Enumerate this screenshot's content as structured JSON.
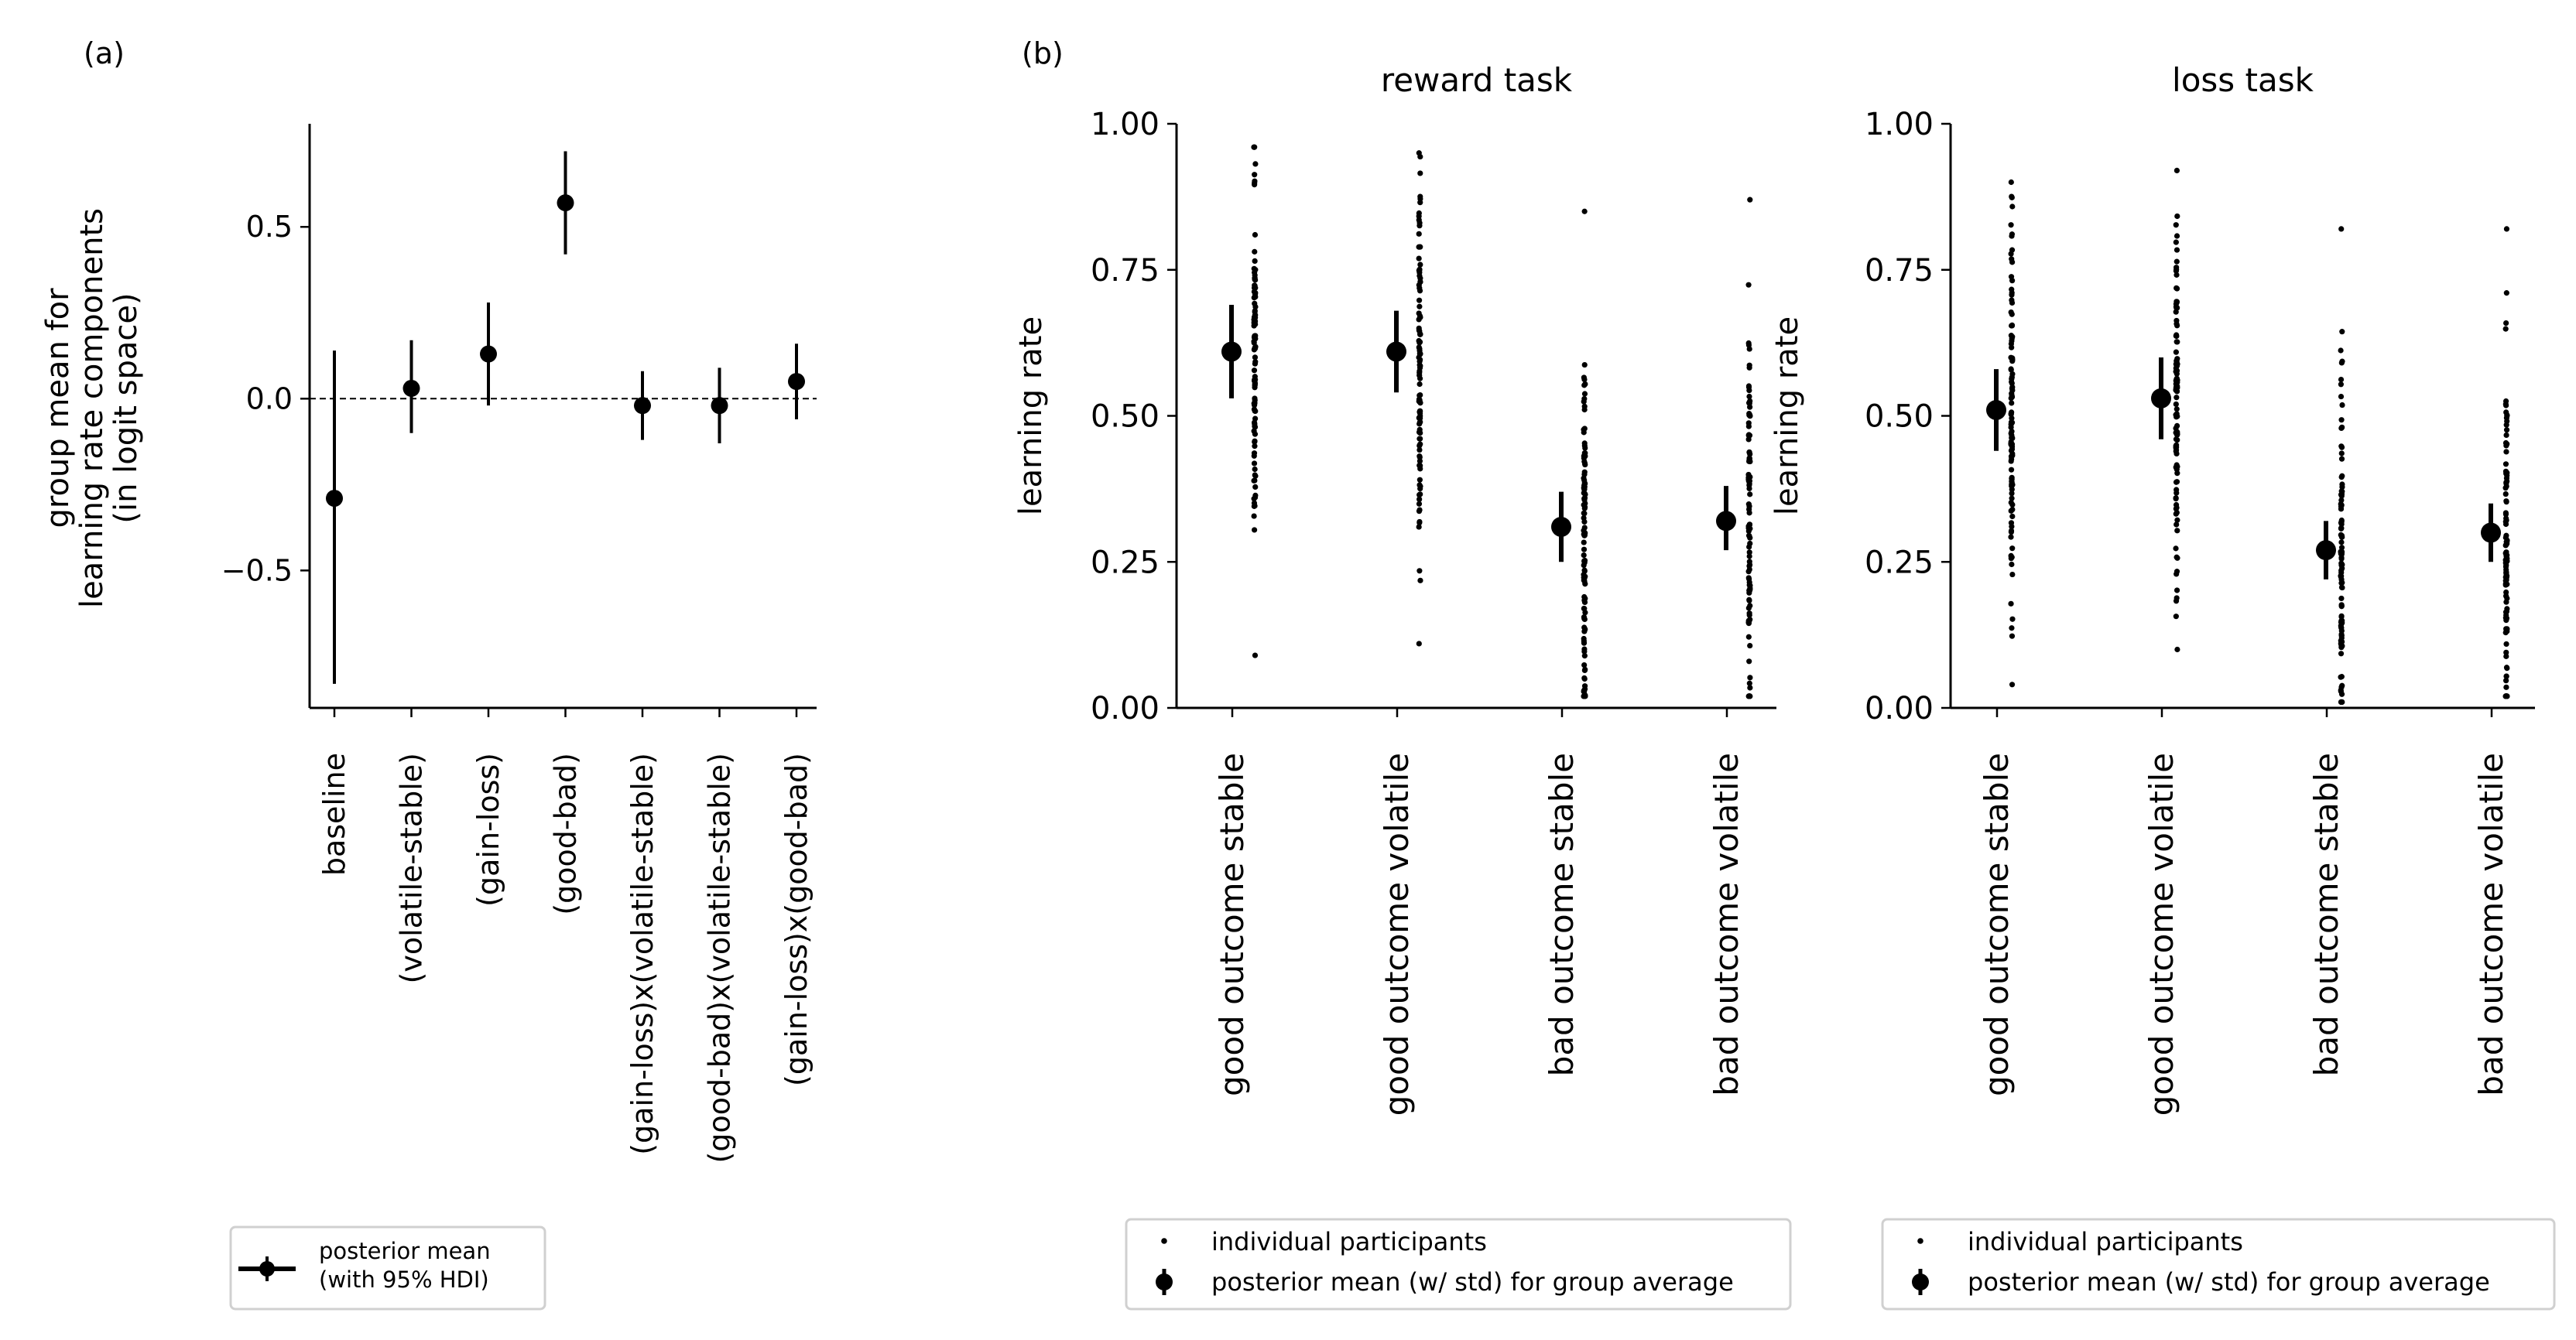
{
  "chart_data": [
    {
      "panel_label": "(a)",
      "type": "scatter",
      "title": "",
      "xlabel": "",
      "ylabel": [
        "group mean for",
        "learning rate components",
        "(in logit space)"
      ],
      "ylim": [
        -0.9,
        0.8
      ],
      "yticks": [
        -0.5,
        0.0,
        0.5
      ],
      "ytick_labels": [
        "−0.5",
        "0.0",
        "0.5"
      ],
      "reference_line_y": 0.0,
      "categories": [
        "baseline",
        "(volatile-stable)",
        "(gain-loss)",
        "(good-bad)",
        "(gain-loss)x(volatile-stable)",
        "(good-bad)x(volatile-stable)",
        "(gain-loss)x(good-bad)"
      ],
      "series": [
        {
          "values": [
            -0.29,
            0.03,
            0.13,
            0.57,
            -0.02,
            -0.02,
            0.05
          ],
          "hdi_low": [
            -0.83,
            -0.1,
            -0.02,
            0.42,
            -0.12,
            -0.13,
            -0.06
          ],
          "hdi_high": [
            0.14,
            0.17,
            0.28,
            0.72,
            0.08,
            0.09,
            0.16
          ]
        }
      ],
      "legend": {
        "placement": "bottom",
        "entries": [
          "posterior mean\n(with 95% HDI)"
        ]
      }
    },
    {
      "panel_label": "(b)",
      "type": "scatter",
      "title": "reward task",
      "xlabel": "",
      "ylabel": "learning rate",
      "ylim": [
        0.0,
        1.0
      ],
      "yticks": [
        0.0,
        0.25,
        0.5,
        0.75,
        1.0
      ],
      "ytick_labels": [
        "0.00",
        "0.25",
        "0.50",
        "0.75",
        "1.00"
      ],
      "categories": [
        "good outcome stable",
        "good outcome volatile",
        "bad outcome stable",
        "bad outcome volatile"
      ],
      "series": [
        {
          "values": [
            0.61,
            0.61,
            0.31,
            0.32
          ],
          "std_low": [
            0.53,
            0.54,
            0.25,
            0.27
          ],
          "std_high": [
            0.69,
            0.68,
            0.37,
            0.38
          ]
        },
        {
          "ranges": [
            [
              0.09,
              0.96
            ],
            [
              0.11,
              0.95
            ],
            [
              0.02,
              0.85
            ],
            [
              0.02,
              0.87
            ]
          ]
        }
      ],
      "legend": {
        "placement": "bottom",
        "entries": [
          "individual participants",
          "posterior mean (w/ std) for group average"
        ]
      }
    },
    {
      "type": "scatter",
      "title": "loss task",
      "xlabel": "",
      "ylabel": "learning rate",
      "ylim": [
        0.0,
        1.0
      ],
      "yticks": [
        0.0,
        0.25,
        0.5,
        0.75,
        1.0
      ],
      "ytick_labels": [
        "0.00",
        "0.25",
        "0.50",
        "0.75",
        "1.00"
      ],
      "categories": [
        "good outcome stable",
        "good outcome volatile",
        "bad outcome stable",
        "bad outcome volatile"
      ],
      "series": [
        {
          "values": [
            0.51,
            0.53,
            0.27,
            0.3
          ],
          "std_low": [
            0.44,
            0.46,
            0.22,
            0.25
          ],
          "std_high": [
            0.58,
            0.6,
            0.32,
            0.35
          ]
        },
        {
          "ranges": [
            [
              0.04,
              0.9
            ],
            [
              0.1,
              0.92
            ],
            [
              0.01,
              0.82
            ],
            [
              0.02,
              0.82
            ]
          ]
        }
      ],
      "legend": {
        "placement": "bottom",
        "entries": [
          "individual participants",
          "posterior mean (w/ std) for group average"
        ]
      }
    }
  ]
}
